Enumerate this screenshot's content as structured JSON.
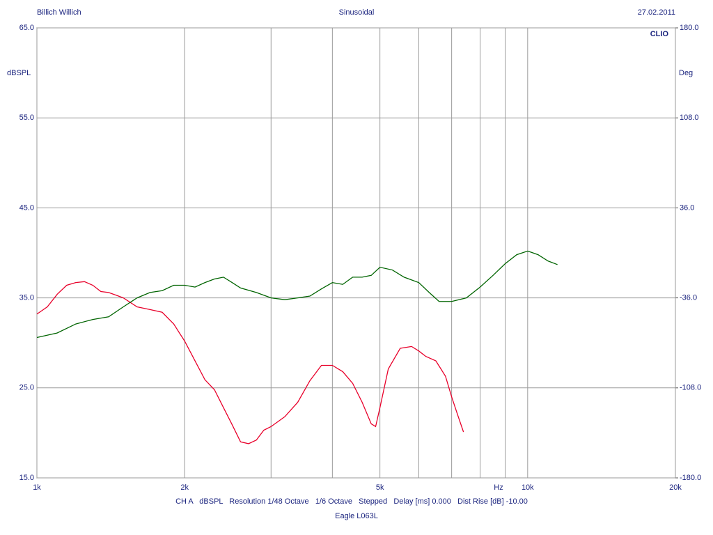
{
  "chart_data": {
    "type": "line",
    "title": "Sinusoidal",
    "header_left": "Billich Willich",
    "date": "27.02.2011",
    "brand": "CLIO",
    "y_label": "dBSPL",
    "y2_label": "Deg",
    "x_label": "Hz",
    "footer": "CH A   dBSPL   Resolution 1/48 Octave   1/6 Octave   Stepped   Delay [ms] 0.000   Dist Rise [dB] -10.00",
    "subtitle": "Eagle L063L",
    "x_scale": "log",
    "grid": true,
    "xlim": [
      1000,
      20000
    ],
    "xticks": [
      {
        "value": 1000,
        "label": "1k"
      },
      {
        "value": 2000,
        "label": "2k"
      },
      {
        "value": 5000,
        "label": "5k"
      },
      {
        "value": 10000,
        "label": "10k"
      },
      {
        "value": 20000,
        "label": "20k"
      }
    ],
    "x_minor_ticks": [
      3000,
      4000,
      6000,
      7000,
      8000,
      9000
    ],
    "ylim": [
      15,
      65
    ],
    "yticks": [
      {
        "value": 15,
        "label": "15.0"
      },
      {
        "value": 25,
        "label": "25.0"
      },
      {
        "value": 35,
        "label": "35.0"
      },
      {
        "value": 45,
        "label": "45.0"
      },
      {
        "value": 55,
        "label": "55.0"
      },
      {
        "value": 65,
        "label": "65.0"
      }
    ],
    "y2lim": [
      -180,
      180
    ],
    "y2ticks": [
      {
        "value": -180,
        "label": "-180.0"
      },
      {
        "value": -108,
        "label": "-108.0"
      },
      {
        "value": -36,
        "label": "-36.0"
      },
      {
        "value": 36,
        "label": "36.0"
      },
      {
        "value": 108,
        "label": "108.0"
      },
      {
        "value": 180,
        "label": "180.0"
      }
    ],
    "series": [
      {
        "color": "#e8002a",
        "x": [
          1000,
          1050,
          1100,
          1150,
          1200,
          1250,
          1300,
          1350,
          1400,
          1450,
          1500,
          1600,
          1700,
          1800,
          1900,
          2000,
          2100,
          2200,
          2300,
          2400,
          2500,
          2600,
          2700,
          2800,
          2900,
          3000,
          3200,
          3400,
          3600,
          3800,
          4000,
          4200,
          4400,
          4600,
          4800,
          4900,
          5000,
          5200,
          5500,
          5800,
          6000,
          6200,
          6500,
          6800,
          7000,
          7200,
          7400
        ],
        "values": [
          33.2,
          34.0,
          35.4,
          36.4,
          36.7,
          36.8,
          36.4,
          35.7,
          35.6,
          35.3,
          35.0,
          34.0,
          33.7,
          33.4,
          32.1,
          30.2,
          28.0,
          25.9,
          24.8,
          22.8,
          20.9,
          19.0,
          18.8,
          19.2,
          20.3,
          20.7,
          21.8,
          23.4,
          25.8,
          27.5,
          27.5,
          26.8,
          25.5,
          23.4,
          21.0,
          20.7,
          22.8,
          27.1,
          29.4,
          29.6,
          29.1,
          28.5,
          28.0,
          26.3,
          24.0,
          22.0,
          20.1
        ]
      },
      {
        "color": "#006400",
        "x": [
          1000,
          1100,
          1200,
          1300,
          1400,
          1500,
          1600,
          1700,
          1800,
          1900,
          2000,
          2100,
          2200,
          2300,
          2400,
          2500,
          2600,
          2800,
          3000,
          3200,
          3400,
          3600,
          3800,
          4000,
          4200,
          4400,
          4600,
          4800,
          5000,
          5300,
          5600,
          6000,
          6300,
          6600,
          7000,
          7500,
          8000,
          8500,
          9000,
          9500,
          10000,
          10500,
          11000,
          11500
        ],
        "values": [
          30.6,
          31.1,
          32.1,
          32.6,
          32.9,
          34.0,
          35.0,
          35.6,
          35.8,
          36.4,
          36.4,
          36.2,
          36.7,
          37.1,
          37.3,
          36.7,
          36.1,
          35.6,
          35.0,
          34.8,
          35.0,
          35.2,
          36.0,
          36.7,
          36.5,
          37.3,
          37.3,
          37.5,
          38.4,
          38.1,
          37.3,
          36.7,
          35.6,
          34.6,
          34.6,
          35.0,
          36.2,
          37.5,
          38.8,
          39.8,
          40.2,
          39.8,
          39.1,
          38.7
        ]
      }
    ]
  }
}
